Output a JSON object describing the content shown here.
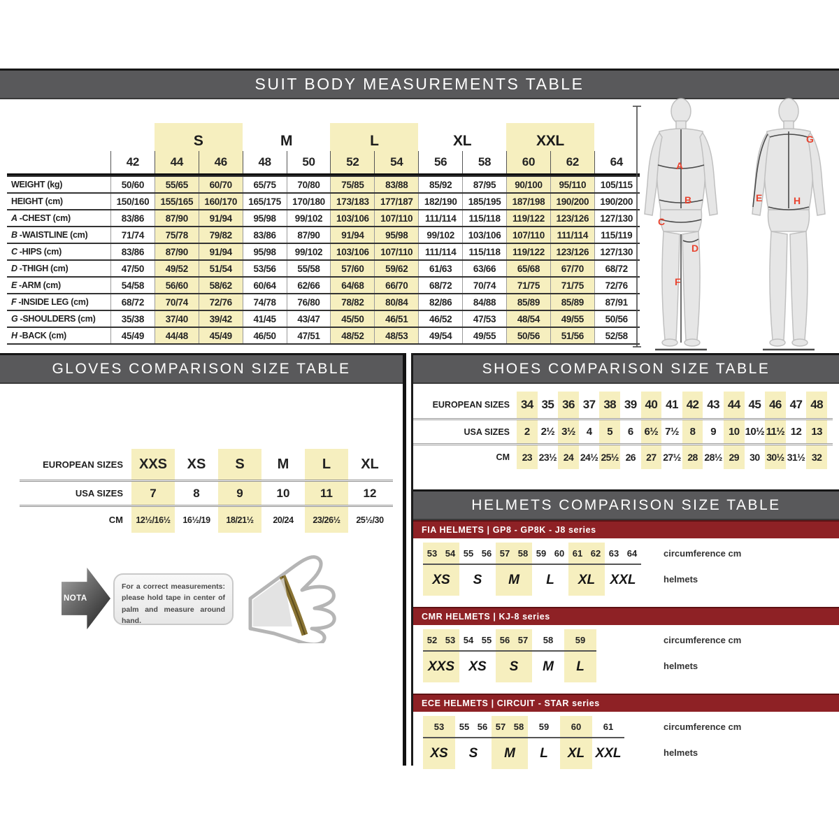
{
  "suit": {
    "title": "SUIT BODY MEASUREMENTS TABLE",
    "groups": [
      {
        "label": "",
        "span": 1,
        "highlight": false
      },
      {
        "label": "S",
        "span": 2,
        "highlight": true
      },
      {
        "label": "M",
        "span": 2,
        "highlight": false
      },
      {
        "label": "L",
        "span": 2,
        "highlight": true
      },
      {
        "label": "XL",
        "span": 2,
        "highlight": false
      },
      {
        "label": "XXL",
        "span": 2,
        "highlight": true
      },
      {
        "label": "",
        "span": 1,
        "highlight": false
      }
    ],
    "columns": [
      "42",
      "44",
      "46",
      "48",
      "50",
      "52",
      "54",
      "56",
      "58",
      "60",
      "62",
      "64"
    ],
    "highlight_cols": [
      1,
      2,
      5,
      6,
      9,
      10
    ],
    "rows": [
      {
        "prefix": "",
        "label": "WEIGHT (kg)",
        "values": [
          "50/60",
          "55/65",
          "60/70",
          "65/75",
          "70/80",
          "75/85",
          "83/88",
          "85/92",
          "87/95",
          "90/100",
          "95/110",
          "105/115"
        ]
      },
      {
        "prefix": "",
        "label": "HEIGHT (cm)",
        "values": [
          "150/160",
          "155/165",
          "160/170",
          "165/175",
          "170/180",
          "173/183",
          "177/187",
          "182/190",
          "185/195",
          "187/198",
          "190/200",
          "190/200"
        ]
      },
      {
        "prefix": "A",
        "label": "CHEST (cm)",
        "values": [
          "83/86",
          "87/90",
          "91/94",
          "95/98",
          "99/102",
          "103/106",
          "107/110",
          "111/114",
          "115/118",
          "119/122",
          "123/126",
          "127/130"
        ]
      },
      {
        "prefix": "B",
        "label": "WAISTLINE (cm)",
        "values": [
          "71/74",
          "75/78",
          "79/82",
          "83/86",
          "87/90",
          "91/94",
          "95/98",
          "99/102",
          "103/106",
          "107/110",
          "111/114",
          "115/119"
        ]
      },
      {
        "prefix": "C",
        "label": "HIPS (cm)",
        "values": [
          "83/86",
          "87/90",
          "91/94",
          "95/98",
          "99/102",
          "103/106",
          "107/110",
          "111/114",
          "115/118",
          "119/122",
          "123/126",
          "127/130"
        ]
      },
      {
        "prefix": "D",
        "label": "THIGH (cm)",
        "values": [
          "47/50",
          "49/52",
          "51/54",
          "53/56",
          "55/58",
          "57/60",
          "59/62",
          "61/63",
          "63/66",
          "65/68",
          "67/70",
          "68/72"
        ]
      },
      {
        "prefix": "E",
        "label": "ARM (cm)",
        "values": [
          "54/58",
          "56/60",
          "58/62",
          "60/64",
          "62/66",
          "64/68",
          "66/70",
          "68/72",
          "70/74",
          "71/75",
          "71/75",
          "72/76"
        ]
      },
      {
        "prefix": "F",
        "label": "INSIDE LEG (cm)",
        "values": [
          "68/72",
          "70/74",
          "72/76",
          "74/78",
          "76/80",
          "78/82",
          "80/84",
          "82/86",
          "84/88",
          "85/89",
          "85/89",
          "87/91"
        ]
      },
      {
        "prefix": "G",
        "label": "SHOULDERS (cm)",
        "values": [
          "35/38",
          "37/40",
          "39/42",
          "41/45",
          "43/47",
          "45/50",
          "46/51",
          "46/52",
          "47/53",
          "48/54",
          "49/55",
          "50/56"
        ]
      },
      {
        "prefix": "H",
        "label": "BACK (cm)",
        "values": [
          "45/49",
          "44/48",
          "45/49",
          "46/50",
          "47/51",
          "48/52",
          "48/53",
          "49/54",
          "49/55",
          "50/56",
          "51/56",
          "52/58"
        ]
      }
    ]
  },
  "figure": {
    "front_labels": [
      "A",
      "B",
      "C",
      "D",
      "F"
    ],
    "back_labels": [
      "G",
      "E",
      "H"
    ]
  },
  "gloves": {
    "title": "GLOVES COMPARISON SIZE TABLE",
    "row_labels": [
      "EUROPEAN SIZES",
      "USA SIZES",
      "CM"
    ],
    "eu": [
      "XXS",
      "XS",
      "S",
      "M",
      "L",
      "XL"
    ],
    "usa": [
      "7",
      "8",
      "9",
      "10",
      "11",
      "12"
    ],
    "cm": [
      "12½/16½",
      "16½/19",
      "18/21½",
      "20/24",
      "23/26½",
      "25½/30"
    ],
    "highlight_cols": [
      0,
      2,
      4
    ],
    "note_label": "NOTA",
    "note_text": "For a correct measurements: please hold tape in center of palm and measure around hand."
  },
  "shoes": {
    "title": "SHOES COMPARISON SIZE TABLE",
    "row_labels": [
      "EUROPEAN SIZES",
      "USA SIZES",
      "CM"
    ],
    "eu": [
      "34",
      "35",
      "36",
      "37",
      "38",
      "39",
      "40",
      "41",
      "42",
      "43",
      "44",
      "45",
      "46",
      "47",
      "48"
    ],
    "usa": [
      "2",
      "2½",
      "3½",
      "4",
      "5",
      "6",
      "6½",
      "7½",
      "8",
      "9",
      "10",
      "10½",
      "11½",
      "12",
      "13"
    ],
    "cm": [
      "23",
      "23½",
      "24",
      "24½",
      "25½",
      "26",
      "27",
      "27½",
      "28",
      "28½",
      "29",
      "30",
      "30½",
      "31½",
      "32"
    ],
    "highlight_cols": [
      0,
      2,
      4,
      6,
      8,
      10,
      12,
      14
    ]
  },
  "helmets": {
    "title": "HELMETS COMPARISON SIZE TABLE",
    "circumference_label": "circumference cm",
    "helmets_label": "helmets",
    "sections": [
      {
        "series": "FIA HELMETS | GP8 - GP8K - J8 series",
        "groups": [
          {
            "size": "XS",
            "nums": [
              "53",
              "54"
            ],
            "highlight": true
          },
          {
            "size": "S",
            "nums": [
              "55",
              "56"
            ],
            "highlight": false
          },
          {
            "size": "M",
            "nums": [
              "57",
              "58"
            ],
            "highlight": true
          },
          {
            "size": "L",
            "nums": [
              "59",
              "60"
            ],
            "highlight": false
          },
          {
            "size": "XL",
            "nums": [
              "61",
              "62"
            ],
            "highlight": true
          },
          {
            "size": "XXL",
            "nums": [
              "63",
              "64"
            ],
            "highlight": false
          }
        ]
      },
      {
        "series": "CMR HELMETS | KJ-8 series",
        "groups": [
          {
            "size": "XXS",
            "nums": [
              "52",
              "53"
            ],
            "highlight": true
          },
          {
            "size": "XS",
            "nums": [
              "54",
              "55"
            ],
            "highlight": false
          },
          {
            "size": "S",
            "nums": [
              "56",
              "57"
            ],
            "highlight": true
          },
          {
            "size": "M",
            "nums": [
              "58"
            ],
            "highlight": false
          },
          {
            "size": "L",
            "nums": [
              "59"
            ],
            "highlight": true
          }
        ]
      },
      {
        "series": "ECE HELMETS | CIRCUIT - STAR series",
        "groups": [
          {
            "size": "XS",
            "nums": [
              "53"
            ],
            "highlight": true
          },
          {
            "size": "S",
            "nums": [
              "55",
              "56"
            ],
            "highlight": false
          },
          {
            "size": "M",
            "nums": [
              "57",
              "58"
            ],
            "highlight": true
          },
          {
            "size": "L",
            "nums": [
              "59"
            ],
            "highlight": false
          },
          {
            "size": "XL",
            "nums": [
              "60"
            ],
            "highlight": true
          },
          {
            "size": "XXL",
            "nums": [
              "61"
            ],
            "highlight": false
          }
        ]
      }
    ]
  },
  "colors": {
    "header_bg": "#59595b",
    "series_bg": "#8e2125",
    "highlight": "#f6efbf",
    "measure_letter_red": "#e8432e"
  }
}
